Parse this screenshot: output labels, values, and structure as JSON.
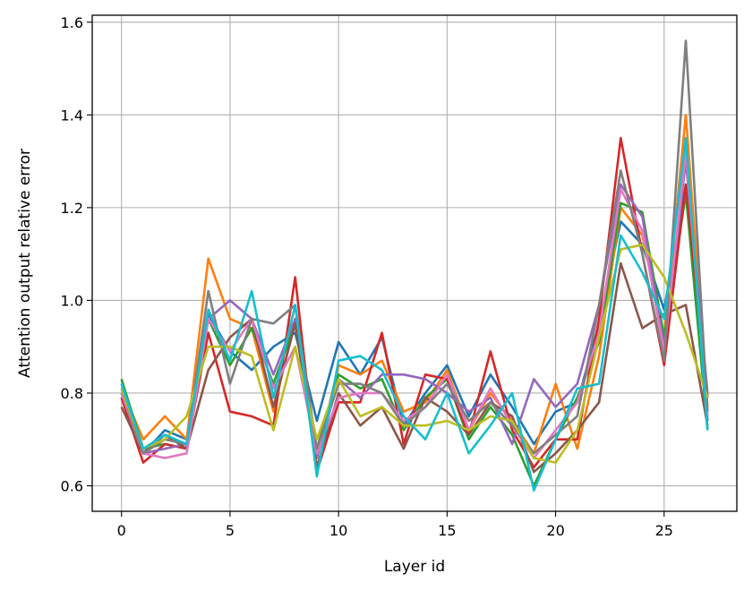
{
  "chart_data": {
    "type": "line",
    "title": "",
    "xlabel": "Layer id",
    "ylabel": "Attention output relative error",
    "xlim": [
      -1.35,
      28.35
    ],
    "ylim": [
      0.545,
      1.615
    ],
    "xticks": [
      0,
      5,
      10,
      15,
      20,
      25
    ],
    "yticks": [
      0.6,
      0.8,
      1.0,
      1.2,
      1.4,
      1.6
    ],
    "ytick_labels": [
      "0.6",
      "0.8",
      "1.0",
      "1.2",
      "1.4",
      "1.6"
    ],
    "grid": true,
    "legend": "none",
    "x": [
      0,
      1,
      2,
      3,
      4,
      5,
      6,
      7,
      8,
      9,
      10,
      11,
      12,
      13,
      14,
      15,
      16,
      17,
      18,
      19,
      20,
      21,
      22,
      23,
      24,
      25,
      26,
      27
    ],
    "series": [
      {
        "color": "#1f77b4",
        "values": [
          0.8,
          0.67,
          0.72,
          0.7,
          0.97,
          0.89,
          0.85,
          0.9,
          0.93,
          0.74,
          0.91,
          0.84,
          0.92,
          0.73,
          0.8,
          0.86,
          0.75,
          0.84,
          0.77,
          0.69,
          0.76,
          0.78,
          0.95,
          1.17,
          1.12,
          0.98,
          1.25,
          0.74
        ]
      },
      {
        "color": "#ff7f0e",
        "values": [
          0.81,
          0.7,
          0.75,
          0.7,
          1.09,
          0.96,
          0.94,
          0.76,
          0.96,
          0.66,
          0.86,
          0.84,
          0.87,
          0.76,
          0.78,
          0.85,
          0.72,
          0.8,
          0.74,
          0.67,
          0.82,
          0.68,
          0.88,
          1.2,
          1.14,
          0.92,
          1.4,
          0.77
        ]
      },
      {
        "color": "#2ca02c",
        "values": [
          0.83,
          0.68,
          0.69,
          0.68,
          0.96,
          0.86,
          0.94,
          0.82,
          0.95,
          0.68,
          0.84,
          0.81,
          0.83,
          0.72,
          0.79,
          0.83,
          0.7,
          0.77,
          0.71,
          0.6,
          0.7,
          0.79,
          0.91,
          1.21,
          1.19,
          0.92,
          1.23,
          0.72
        ]
      },
      {
        "color": "#d62728",
        "values": [
          0.79,
          0.65,
          0.69,
          0.68,
          0.93,
          0.76,
          0.75,
          0.73,
          1.05,
          0.63,
          0.78,
          0.78,
          0.93,
          0.69,
          0.84,
          0.83,
          0.71,
          0.89,
          0.72,
          0.64,
          0.7,
          0.7,
          0.96,
          1.35,
          1.1,
          0.86,
          1.25,
          0.79
        ]
      },
      {
        "color": "#9467bd",
        "values": [
          0.8,
          0.67,
          0.68,
          0.69,
          0.96,
          1.0,
          0.96,
          0.84,
          0.96,
          0.66,
          0.83,
          0.79,
          0.84,
          0.84,
          0.83,
          0.8,
          0.76,
          0.79,
          0.69,
          0.83,
          0.77,
          0.82,
          0.99,
          1.25,
          1.18,
          0.9,
          1.3,
          0.8
        ]
      },
      {
        "color": "#8c564b",
        "values": [
          0.77,
          0.67,
          0.71,
          0.68,
          0.85,
          0.92,
          0.96,
          0.77,
          0.95,
          0.64,
          0.8,
          0.73,
          0.77,
          0.68,
          0.79,
          0.76,
          0.71,
          0.78,
          0.75,
          0.63,
          0.67,
          0.72,
          0.78,
          1.08,
          0.94,
          0.97,
          0.99,
          0.73
        ]
      },
      {
        "color": "#e377c2",
        "values": [
          0.8,
          0.67,
          0.66,
          0.67,
          0.96,
          0.89,
          0.96,
          0.81,
          0.9,
          0.67,
          0.79,
          0.8,
          0.8,
          0.74,
          0.77,
          0.84,
          0.72,
          0.81,
          0.73,
          0.66,
          0.72,
          0.78,
          0.93,
          1.24,
          1.15,
          0.89,
          1.32,
          0.75
        ]
      },
      {
        "color": "#7f7f7f",
        "values": [
          0.81,
          0.67,
          0.7,
          0.69,
          1.02,
          0.82,
          0.96,
          0.95,
          0.99,
          0.68,
          0.82,
          0.82,
          0.8,
          0.73,
          0.77,
          0.82,
          0.74,
          0.78,
          0.73,
          0.67,
          0.71,
          0.75,
          0.99,
          1.28,
          1.1,
          0.87,
          1.56,
          0.76
        ]
      },
      {
        "color": "#bcbd22",
        "values": [
          0.81,
          0.68,
          0.7,
          0.75,
          0.9,
          0.9,
          0.88,
          0.72,
          0.9,
          0.7,
          0.83,
          0.75,
          0.77,
          0.73,
          0.73,
          0.74,
          0.72,
          0.75,
          0.74,
          0.66,
          0.65,
          0.72,
          0.92,
          1.11,
          1.12,
          1.05,
          0.93,
          0.79
        ]
      },
      {
        "color": "#17becf",
        "values": [
          0.82,
          0.68,
          0.71,
          0.69,
          0.98,
          0.87,
          1.02,
          0.79,
          0.99,
          0.62,
          0.87,
          0.88,
          0.85,
          0.75,
          0.7,
          0.8,
          0.67,
          0.73,
          0.8,
          0.59,
          0.7,
          0.81,
          0.82,
          1.14,
          1.06,
          0.96,
          1.35,
          0.72
        ]
      }
    ]
  }
}
